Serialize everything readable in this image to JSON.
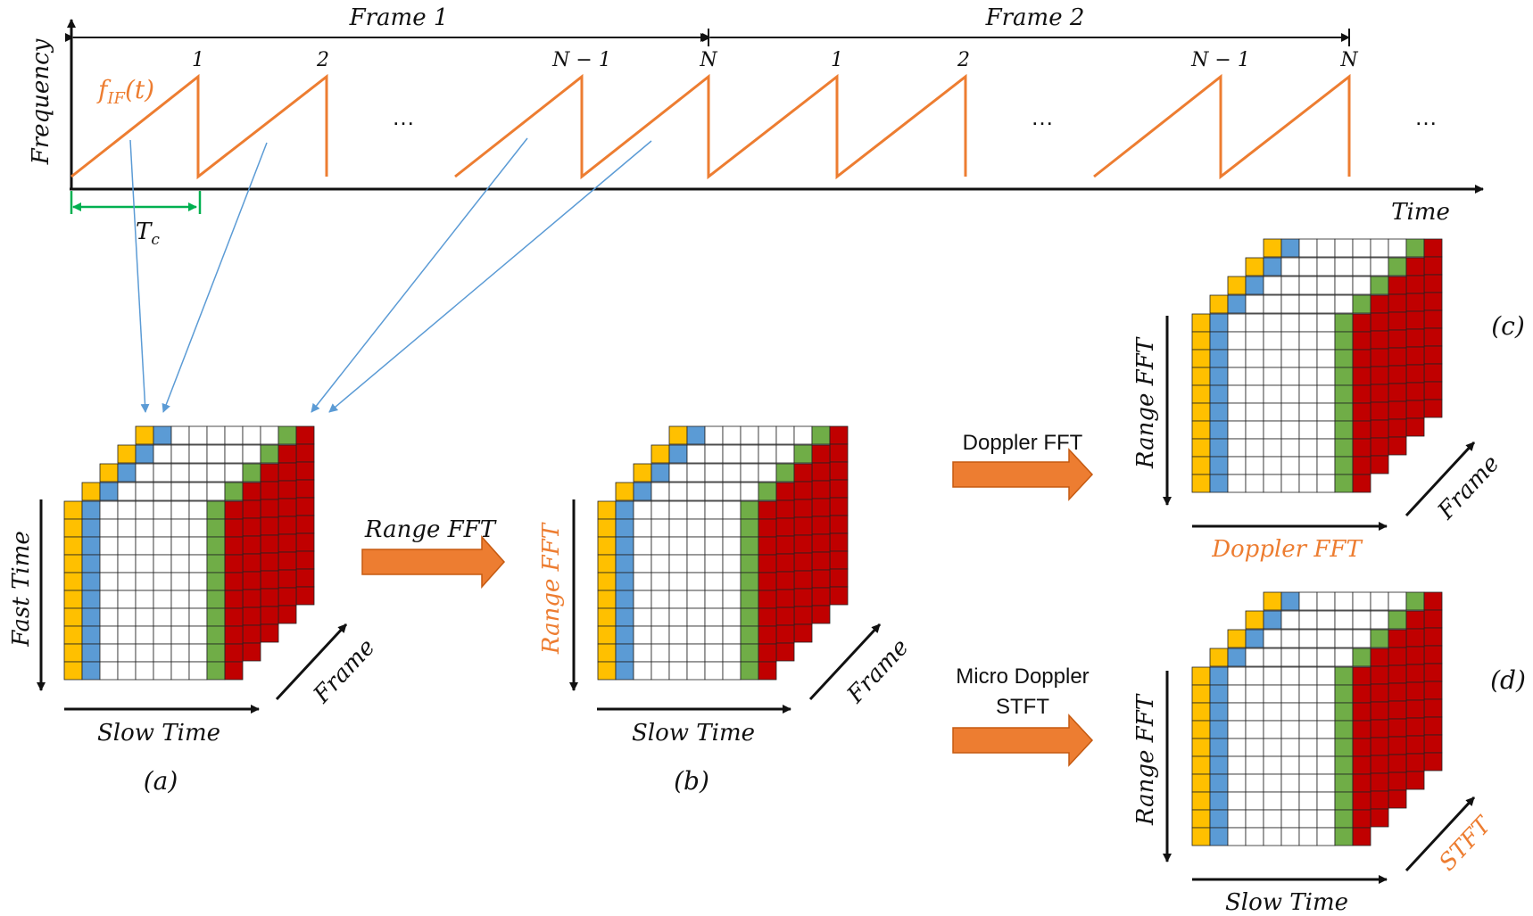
{
  "timeline": {
    "frame1_label": "Frame 1",
    "frame2_label": "Frame 2",
    "y_axis_label": "Frequency",
    "x_axis_label": "Time",
    "chirp_indices": [
      "1",
      "2",
      "N − 1",
      "N"
    ],
    "signal_label": "f",
    "signal_subscript": "IF",
    "signal_suffix": "(t)",
    "period_label": "T",
    "period_subscript": "c",
    "ellipsis": "…"
  },
  "cubes": {
    "a": {
      "caption": "(a)",
      "vertical_axis": "Fast Time",
      "horizontal_axis": "Slow Time",
      "depth_axis": "Frame"
    },
    "b": {
      "caption": "(b)",
      "vertical_axis": "Range FFT",
      "horizontal_axis": "Slow Time",
      "depth_axis": "Frame"
    },
    "c": {
      "caption": "(c)",
      "vertical_axis": "Range FFT",
      "horizontal_axis": "Doppler FFT",
      "depth_axis": "Frame"
    },
    "d": {
      "caption": "(d)",
      "vertical_axis": "Range FFT",
      "horizontal_axis": "Slow Time",
      "depth_axis": "STFT"
    }
  },
  "arrows": {
    "range_fft": "Range FFT",
    "doppler_fft": "Doppler FFT",
    "micro_doppler_line1": "Micro Doppler",
    "micro_doppler_line2": "STFT"
  },
  "colors": {
    "chirp": "#ED7D31",
    "accent_text": "#ED7D31",
    "period": "#00B050",
    "mapping_line": "#5B9BD5",
    "cell_first": "#FFC000",
    "cell_second": "#5B9BD5",
    "cell_green": "#70AD47",
    "cell_red": "#C00000",
    "process_arrow": "#ED7D31"
  }
}
